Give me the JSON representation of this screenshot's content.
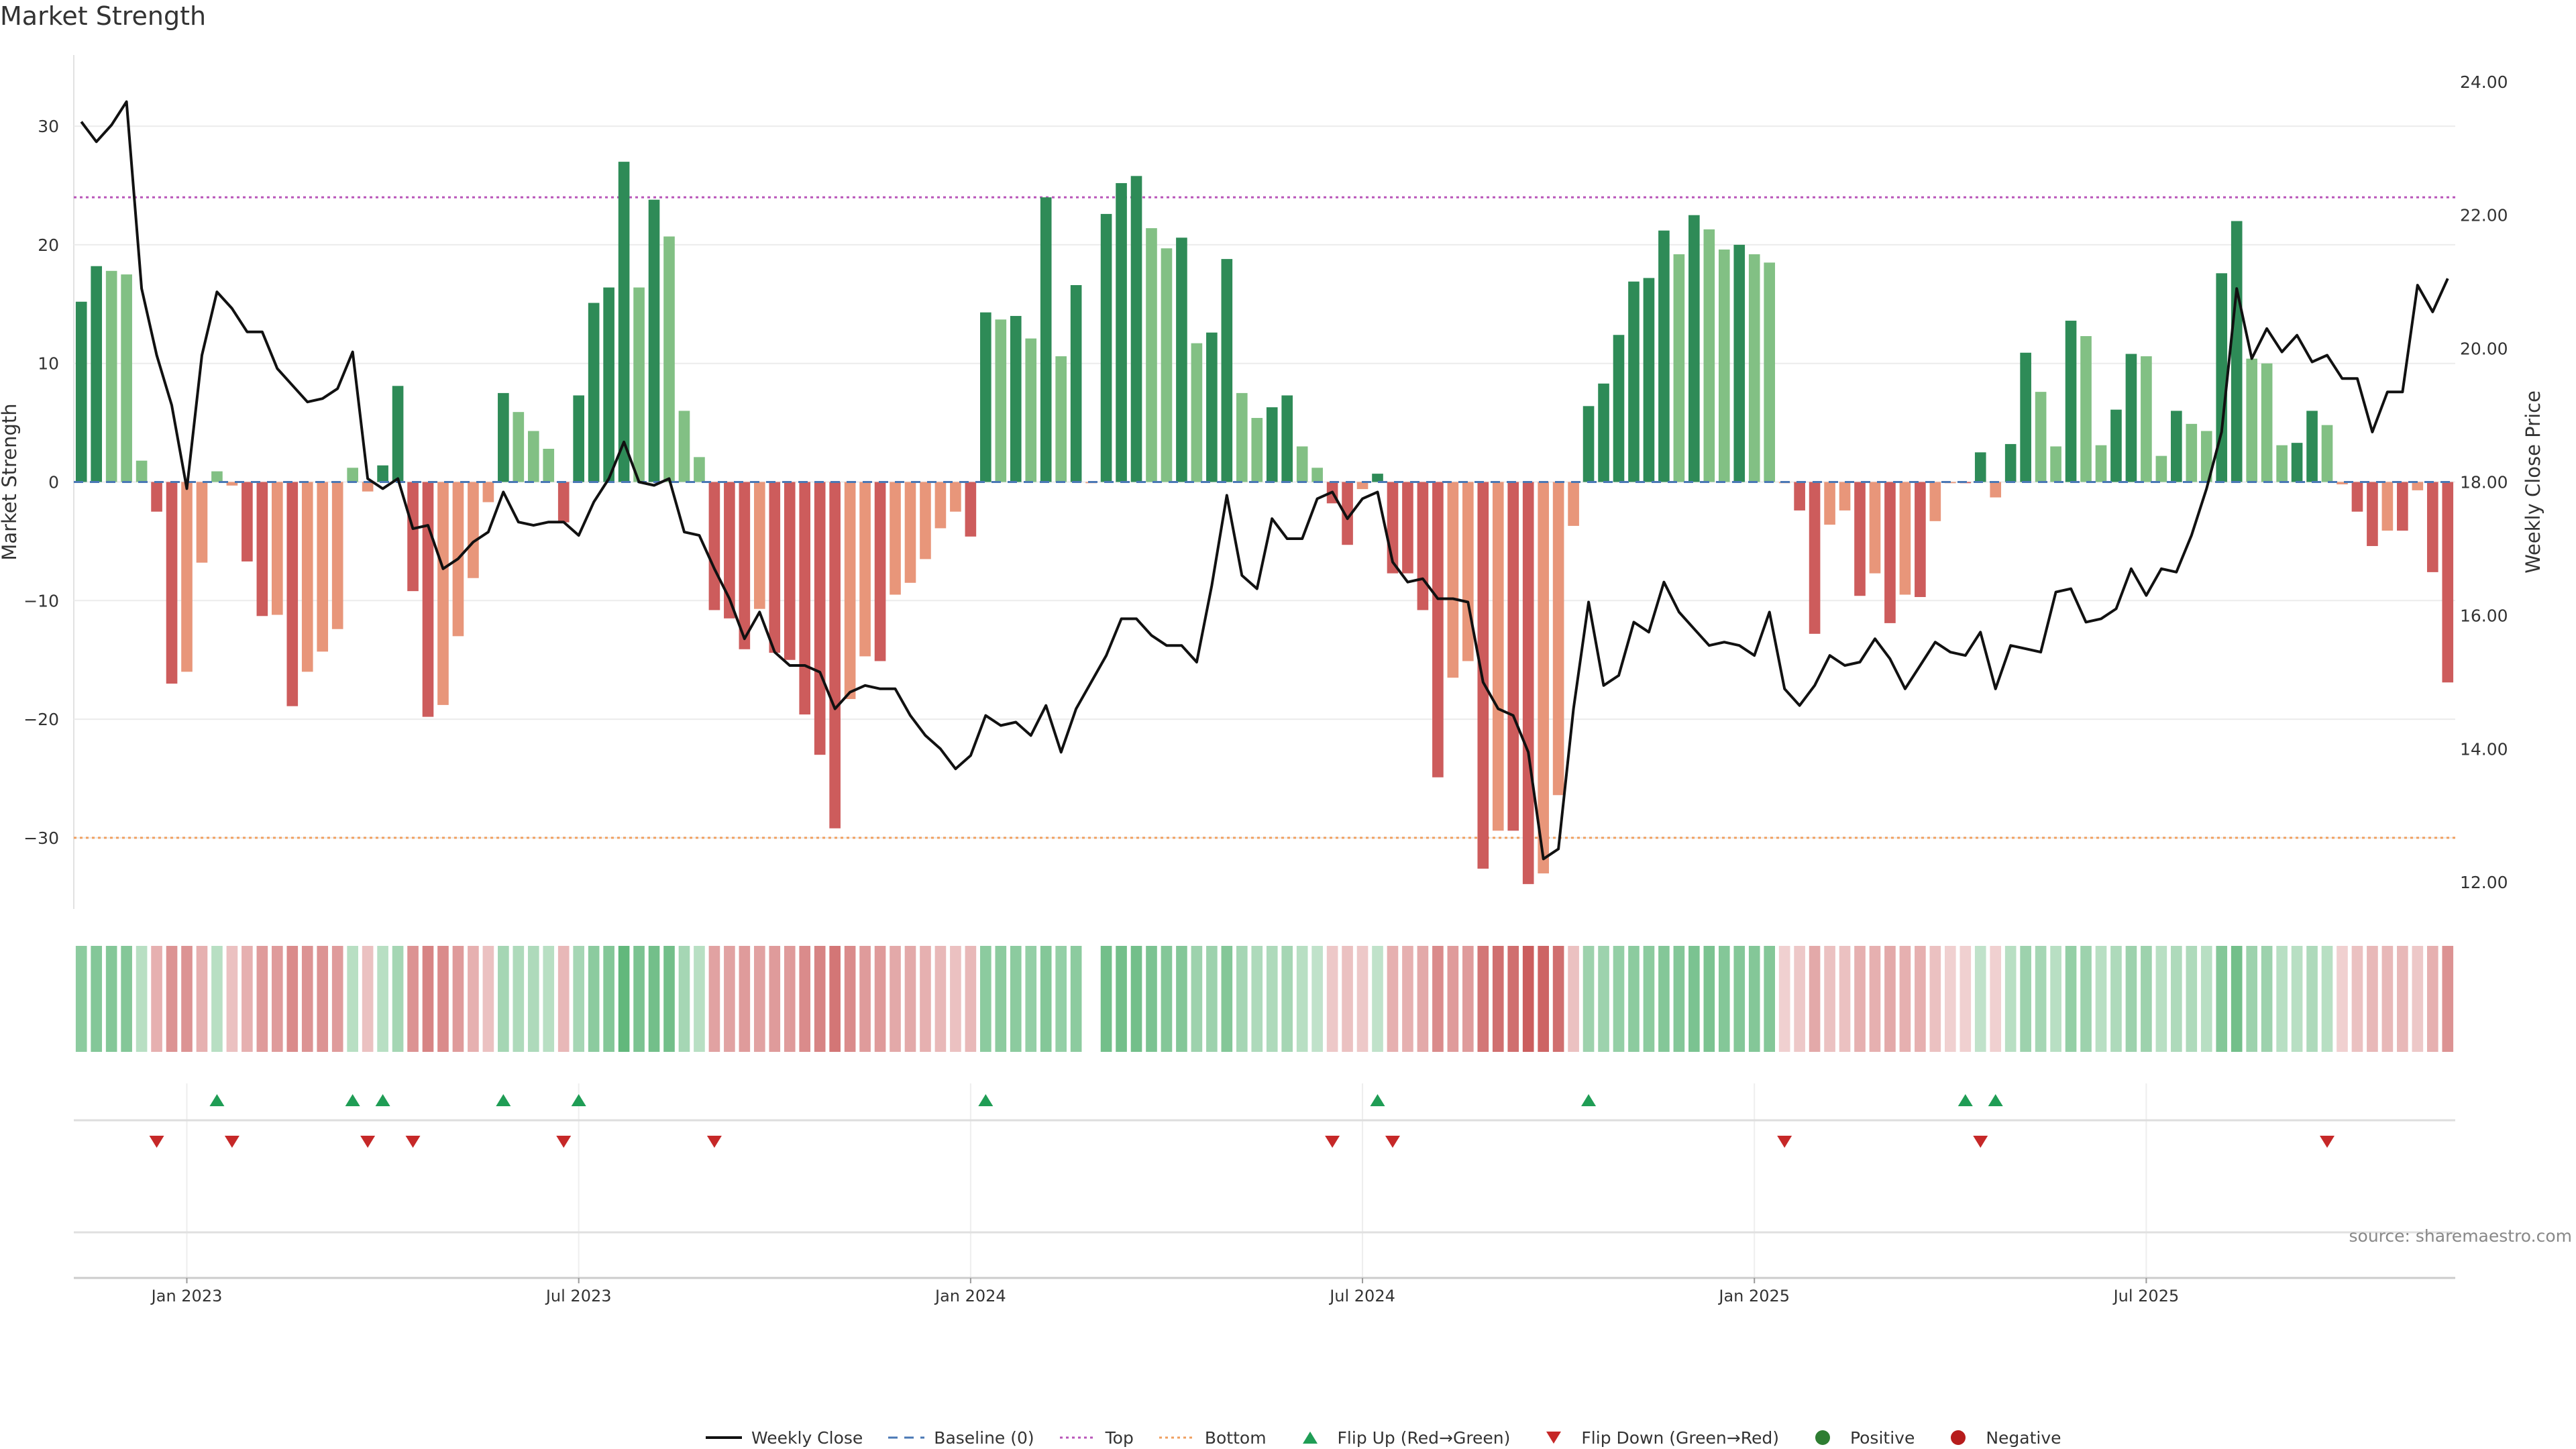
{
  "page": {
    "title": "Market Strength",
    "source": "source: sharemaestro.com"
  },
  "legend": [
    {
      "key": "close",
      "label": "Weekly Close",
      "symbol": "line-solid",
      "color": "#111111"
    },
    {
      "key": "baseline",
      "label": "Baseline (0)",
      "symbol": "line-dash",
      "color": "#4a78b5"
    },
    {
      "key": "top",
      "label": "Top",
      "symbol": "line-dot",
      "color": "#b955b9"
    },
    {
      "key": "bottom",
      "label": "Bottom",
      "symbol": "line-dot",
      "color": "#f0a060"
    },
    {
      "key": "flip_up",
      "label": "Flip Up (Red→Green)",
      "symbol": "triangle-up",
      "color": "#1f9d55"
    },
    {
      "key": "flip_down",
      "label": "Flip Down (Green→Red)",
      "symbol": "triangle-down",
      "color": "#c62828"
    },
    {
      "key": "positive",
      "label": "Positive",
      "symbol": "dot",
      "color": "#2e7d32"
    },
    {
      "key": "negative",
      "label": "Negative",
      "symbol": "dot",
      "color": "#b71c1c"
    }
  ],
  "colors": {
    "pos_strong": "#2e8b57",
    "pos_weak": "#82c084",
    "neg_strong": "#cd5c5c",
    "neg_weak": "#e8967a",
    "close_line": "#111111",
    "grid": "#ececec"
  },
  "chart_data": {
    "type": "bar",
    "title": "Market Strength",
    "ylabel": "Market Strength",
    "y2label": "Weekly Close Price",
    "ylim": [
      -36,
      36
    ],
    "y2lim": [
      11.6,
      24.4
    ],
    "yticks": [
      30,
      20,
      10,
      0,
      -10,
      -20,
      -30
    ],
    "y2ticks": [
      "24.00",
      "22.00",
      "20.00",
      "18.00",
      "16.00",
      "14.00",
      "12.00"
    ],
    "top_level": 24,
    "bottom_level": -30,
    "baseline": 0,
    "x_start": "2022-11-14",
    "x_start_week_offset": 0,
    "xticks": [
      {
        "label": "Jan 2023",
        "week": 7
      },
      {
        "label": "Jul 2023",
        "week": 33
      },
      {
        "label": "Jan 2024",
        "week": 59
      },
      {
        "label": "Jul 2024",
        "week": 85
      },
      {
        "label": "Jan 2025",
        "week": 111
      },
      {
        "label": "Jul 2025",
        "week": 137
      }
    ],
    "strength": [
      15.2,
      18.2,
      17.8,
      17.5,
      1.8,
      -2.5,
      -17.0,
      -16.0,
      -6.8,
      0.9,
      -0.3,
      -6.7,
      -11.3,
      -11.2,
      -18.9,
      -16.0,
      -14.3,
      -12.4,
      1.2,
      -0.8,
      1.4,
      8.1,
      -9.2,
      -19.8,
      -18.8,
      -13.0,
      -8.1,
      -1.7,
      7.5,
      5.9,
      4.3,
      2.8,
      -3.4,
      7.3,
      15.1,
      16.4,
      27.0,
      16.4,
      23.8,
      20.7,
      6.0,
      2.1,
      -10.8,
      -11.5,
      -14.1,
      -10.7,
      -14.4,
      -15.0,
      -19.6,
      -23.0,
      -29.2,
      -18.3,
      -14.7,
      -15.1,
      -9.5,
      -8.5,
      -6.5,
      -3.9,
      -2.5,
      -4.6,
      14.3,
      13.7,
      14.0,
      12.1,
      24.0,
      10.6,
      16.6,
      -0.1,
      22.6,
      25.2,
      25.8,
      21.4,
      19.7,
      20.6,
      11.7,
      12.6,
      18.8,
      7.5,
      5.4,
      6.3,
      7.3,
      3.0,
      1.2,
      -1.8,
      -5.3,
      -0.6,
      0.7,
      -7.7,
      -7.7,
      -10.8,
      -24.9,
      -16.5,
      -15.1,
      -32.6,
      -29.4,
      -29.4,
      -33.9,
      -33.0,
      -26.4,
      -3.7,
      6.4,
      8.3,
      12.4,
      16.9,
      17.2,
      21.2,
      19.2,
      22.5,
      21.3,
      19.6,
      20.0,
      19.2,
      18.5,
      -0.1,
      -2.4,
      -12.8,
      -3.6,
      -2.4,
      -9.6,
      -7.7,
      -11.9,
      -9.5,
      -9.7,
      -3.3,
      -0.1,
      -0.1,
      2.5,
      -1.3,
      3.2,
      10.9,
      7.6,
      3.0,
      13.6,
      12.3,
      3.1,
      6.1,
      10.8,
      10.6,
      2.2,
      6.0,
      4.9,
      4.3,
      17.6,
      22.0,
      10.4,
      10.0,
      3.1,
      3.3,
      6.0,
      4.8,
      -0.2,
      -2.5,
      -5.4,
      -4.1,
      -4.1,
      -0.7,
      -7.6,
      -16.9
    ],
    "close": [
      23.4,
      23.1,
      23.35,
      23.7,
      20.9,
      19.9,
      19.15,
      17.9,
      19.9,
      20.85,
      20.6,
      20.25,
      20.25,
      19.7,
      19.45,
      19.2,
      19.25,
      19.4,
      19.95,
      18.05,
      17.9,
      18.05,
      17.3,
      17.35,
      16.7,
      16.85,
      17.1,
      17.25,
      17.85,
      17.4,
      17.35,
      17.4,
      17.4,
      17.2,
      17.7,
      18.05,
      18.6,
      18.0,
      17.95,
      18.05,
      17.25,
      17.2,
      16.7,
      16.25,
      15.65,
      16.05,
      15.45,
      15.25,
      15.25,
      15.15,
      14.6,
      14.85,
      14.95,
      14.9,
      14.9,
      14.5,
      14.2,
      14.0,
      13.7,
      13.9,
      14.5,
      14.35,
      14.4,
      14.2,
      14.65,
      13.95,
      14.6,
      15.0,
      15.4,
      15.95,
      15.95,
      15.7,
      15.55,
      15.55,
      15.3,
      16.45,
      17.8,
      16.6,
      16.4,
      17.45,
      17.15,
      17.15,
      17.75,
      17.85,
      17.45,
      17.75,
      17.85,
      16.8,
      16.5,
      16.55,
      16.25,
      16.25,
      16.2,
      15.0,
      14.6,
      14.5,
      13.95,
      12.35,
      12.5,
      14.6,
      16.2,
      14.95,
      15.1,
      15.9,
      15.75,
      16.5,
      16.05,
      15.8,
      15.55,
      15.6,
      15.55,
      15.4,
      16.05,
      14.9,
      14.65,
      14.95,
      15.4,
      15.25,
      15.3,
      15.65,
      15.35,
      14.9,
      15.25,
      15.6,
      15.45,
      15.4,
      15.75,
      14.9,
      15.55,
      15.5,
      15.45,
      16.35,
      16.4,
      15.9,
      15.95,
      16.1,
      16.7,
      16.3,
      16.7,
      16.65,
      17.2,
      17.9,
      18.75,
      20.9,
      19.85,
      20.3,
      19.95,
      20.2,
      19.8,
      19.9,
      19.55,
      19.55,
      18.75,
      19.35,
      19.35,
      20.95,
      20.55,
      21.05
    ],
    "heat_intensity": [
      0.45,
      0.5,
      0.5,
      0.5,
      0.2,
      0.3,
      0.5,
      0.5,
      0.3,
      0.2,
      0.2,
      0.3,
      0.45,
      0.45,
      0.55,
      0.5,
      0.5,
      0.45,
      0.2,
      0.2,
      0.2,
      0.3,
      0.5,
      0.6,
      0.55,
      0.45,
      0.3,
      0.2,
      0.3,
      0.25,
      0.25,
      0.2,
      0.25,
      0.3,
      0.45,
      0.5,
      0.7,
      0.55,
      0.6,
      0.6,
      0.3,
      0.2,
      0.4,
      0.4,
      0.45,
      0.4,
      0.45,
      0.45,
      0.55,
      0.6,
      0.7,
      0.55,
      0.45,
      0.45,
      0.35,
      0.35,
      0.3,
      0.25,
      0.2,
      0.25,
      0.45,
      0.45,
      0.45,
      0.4,
      0.5,
      0.4,
      0.45,
      0.0,
      0.6,
      0.6,
      0.6,
      0.55,
      0.5,
      0.5,
      0.35,
      0.35,
      0.5,
      0.3,
      0.25,
      0.25,
      0.3,
      0.2,
      0.15,
      0.15,
      0.2,
      0.15,
      0.15,
      0.3,
      0.3,
      0.35,
      0.55,
      0.45,
      0.45,
      0.7,
      0.75,
      0.75,
      0.85,
      0.8,
      0.75,
      0.2,
      0.35,
      0.35,
      0.4,
      0.45,
      0.45,
      0.5,
      0.5,
      0.55,
      0.55,
      0.5,
      0.5,
      0.5,
      0.5,
      0.1,
      0.15,
      0.35,
      0.2,
      0.2,
      0.3,
      0.3,
      0.35,
      0.3,
      0.3,
      0.2,
      0.1,
      0.1,
      0.15,
      0.1,
      0.2,
      0.35,
      0.3,
      0.2,
      0.4,
      0.35,
      0.2,
      0.25,
      0.35,
      0.35,
      0.2,
      0.25,
      0.25,
      0.2,
      0.5,
      0.6,
      0.35,
      0.35,
      0.2,
      0.2,
      0.25,
      0.2,
      0.1,
      0.2,
      0.25,
      0.25,
      0.25,
      0.15,
      0.3,
      0.5
    ],
    "flip_up_weeks": [
      9,
      18,
      20,
      28,
      33,
      60,
      86,
      100,
      125,
      127
    ],
    "flip_down_weeks": [
      5,
      10,
      19,
      22,
      32,
      42,
      83,
      87,
      113,
      126,
      149
    ]
  }
}
